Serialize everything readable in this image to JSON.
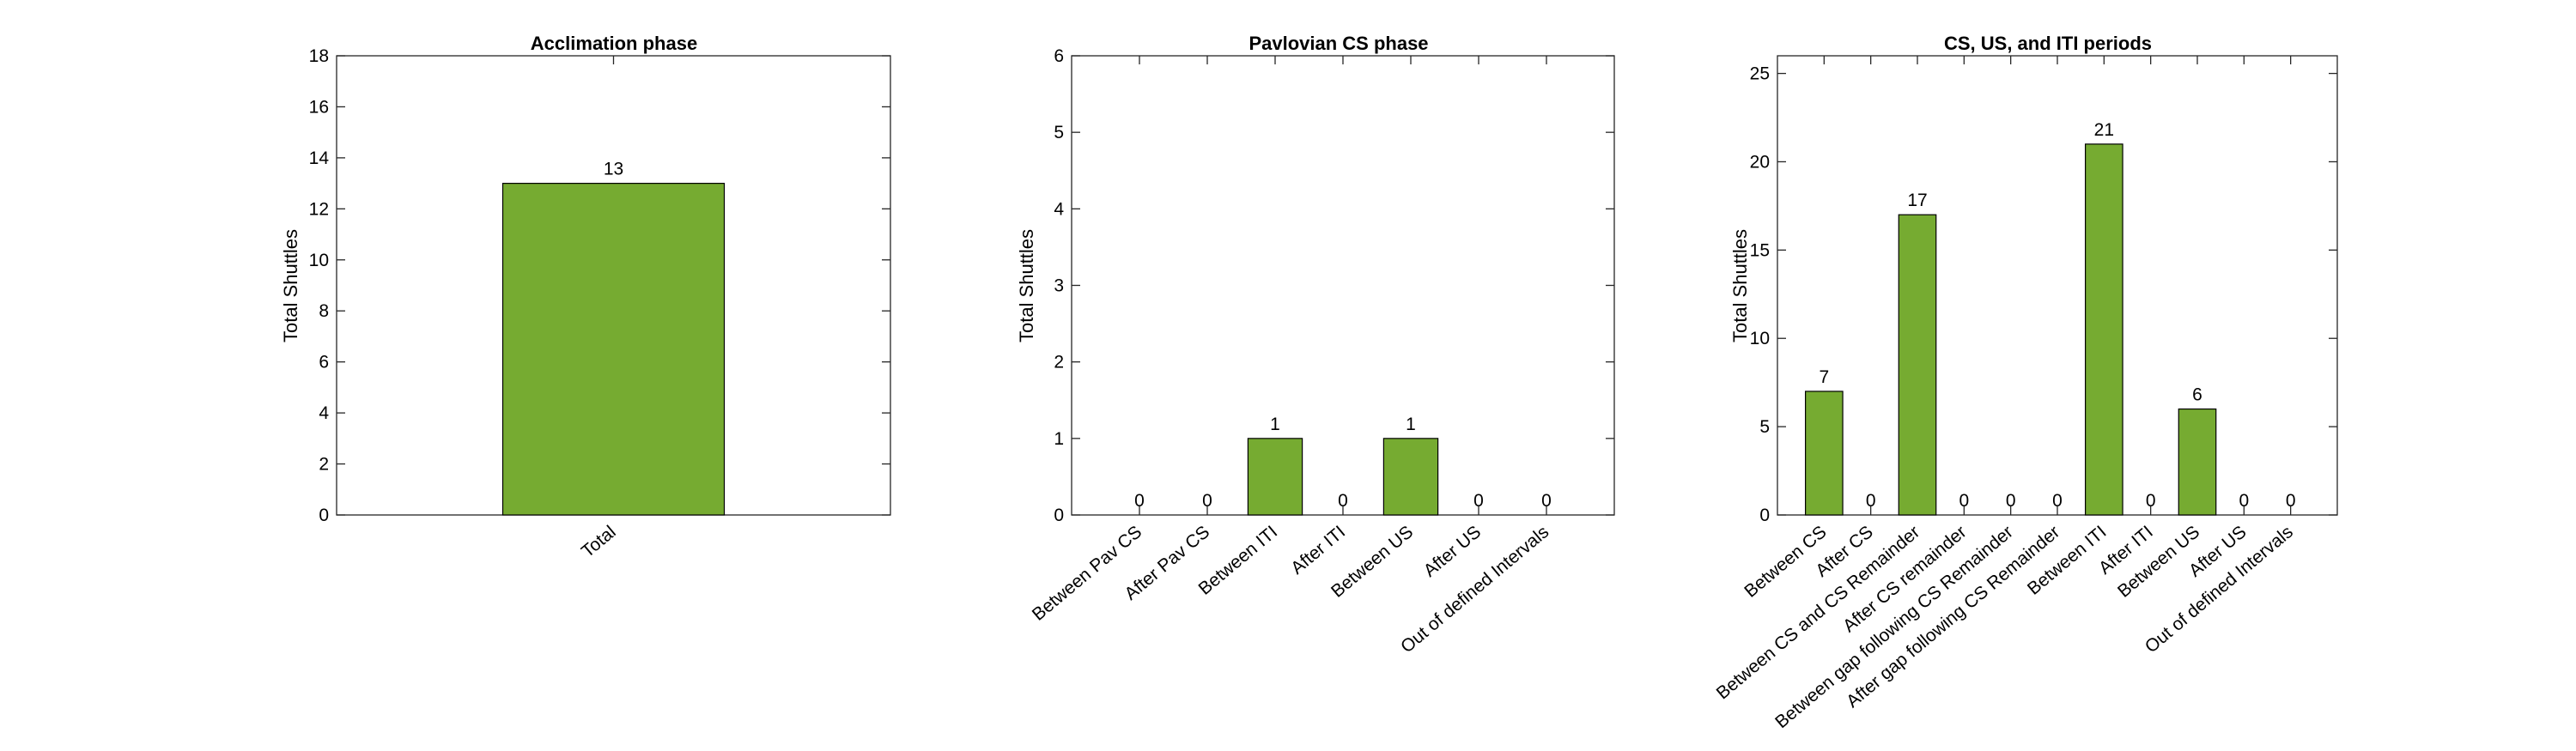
{
  "chart_data": [
    {
      "type": "bar",
      "title": "Acclimation phase",
      "xlabel": "",
      "ylabel": "Total Shuttles",
      "categories": [
        "Total"
      ],
      "values": [
        13
      ],
      "ylim": [
        0,
        18
      ],
      "yticks": [
        0,
        2,
        4,
        6,
        8,
        10,
        12,
        14,
        16,
        18
      ],
      "grid": false,
      "bar_color": "#76AB31"
    },
    {
      "type": "bar",
      "title": "Pavlovian CS phase",
      "xlabel": "",
      "ylabel": "Total Shuttles",
      "categories": [
        "Between Pav CS",
        "After Pav CS",
        "Between ITI",
        "After ITI",
        "Between US",
        "After US",
        "Out of defined Intervals"
      ],
      "values": [
        0,
        0,
        1,
        0,
        1,
        0,
        0
      ],
      "ylim": [
        0,
        6
      ],
      "yticks": [
        0,
        1,
        2,
        3,
        4,
        5,
        6
      ],
      "grid": false,
      "bar_color": "#76AB31"
    },
    {
      "type": "bar",
      "title": "CS, US, and ITI periods",
      "xlabel": "",
      "ylabel": "Total Shuttles",
      "categories": [
        "Between CS",
        "After CS",
        "Between CS and CS Remainder",
        "After CS remainder",
        "Between gap following CS Remainder",
        "After gap following CS Remainder",
        "Between ITI",
        "After ITI",
        "Between US",
        "After US",
        "Out of defined Intervals"
      ],
      "values": [
        7,
        0,
        17,
        0,
        0,
        0,
        21,
        0,
        6,
        0,
        0
      ],
      "ylim": [
        0,
        26
      ],
      "yticks": [
        0,
        5,
        10,
        15,
        20,
        25
      ],
      "grid": false,
      "bar_color": "#76AB31"
    }
  ]
}
